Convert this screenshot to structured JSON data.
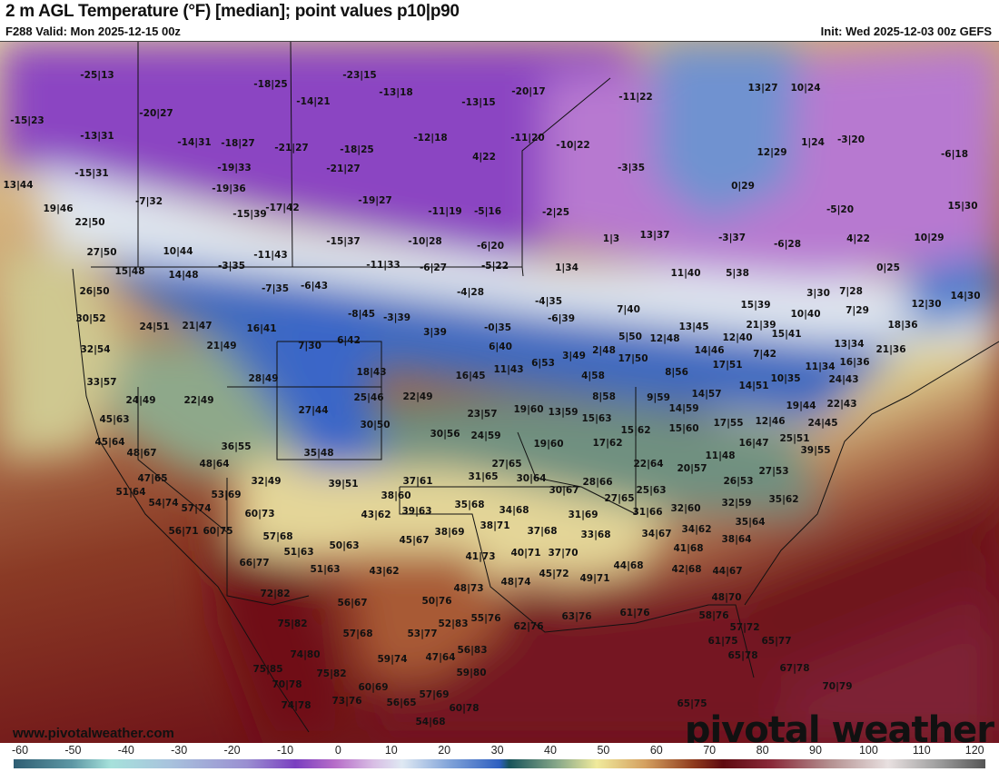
{
  "header": {
    "title": "2 m AGL Temperature (°F) [median]; point values p10|p90",
    "valid": "F288 Valid: Mon 2025-12-15 00z",
    "init": "Init: Wed 2025-12-03 00z GEFS"
  },
  "map": {
    "website": "www.pivotalweather.com",
    "logo": "pivotal weather",
    "points": [
      "-25|13",
      "-18|25",
      "-23|15",
      "-13|18",
      "-20|17",
      "-13|15",
      "-11|22",
      "13|27",
      "10|24",
      "-15|23",
      "-20|27",
      "-14|21",
      "-13|31",
      "-14|31",
      "-18|27",
      "-21|27",
      "-18|25",
      "-12|18",
      "-11|20",
      "-10|22",
      "4|22",
      "12|29",
      "1|24",
      "-3|20",
      "-6|18",
      "-19|33",
      "-21|27",
      "-3|35",
      "0|29",
      "13|44",
      "-15|31",
      "-19|36",
      "-19|27",
      "-7|32",
      "-17|42",
      "-15|39",
      "-11|19",
      "-5|16",
      "-2|25",
      "-5|20",
      "15|30",
      "19|46",
      "22|50",
      "-10|28",
      "-6|20",
      "-15|37",
      "1|3",
      "13|37",
      "-3|37",
      "-6|28",
      "4|22",
      "10|29",
      "27|50",
      "10|44",
      "-11|43",
      "-11|33",
      "-6|27",
      "-5|22",
      "1|34",
      "11|40",
      "5|38",
      "0|25",
      "15|48",
      "14|48",
      "-3|35",
      "-7|35",
      "-6|43",
      "-4|28",
      "-4|35",
      "3|30",
      "7|28",
      "12|30",
      "14|30",
      "26|50",
      "30|52",
      "24|51",
      "21|47",
      "16|41",
      "7|30",
      "-8|45",
      "-3|39",
      "-0|35",
      "-6|39",
      "7|40",
      "15|39",
      "21|39",
      "10|40",
      "7|29",
      "18|36",
      "13|45",
      "12|48",
      "5|50",
      "17|50",
      "3|49",
      "6|53",
      "2|48",
      "6|40",
      "3|39",
      "11|43",
      "16|45",
      "6|42",
      "18|43",
      "32|54",
      "21|49",
      "28|49",
      "15|41",
      "12|40",
      "14|46",
      "17|51",
      "7|42",
      "13|34",
      "21|36",
      "11|34",
      "10|35",
      "16|36",
      "14|51",
      "24|43",
      "8|56",
      "4|58",
      "33|57",
      "24|49",
      "22|49",
      "25|46",
      "22|49",
      "8|58",
      "9|59",
      "14|57",
      "19|60",
      "13|59",
      "27|44",
      "14|59",
      "22|43",
      "19|44",
      "45|63",
      "23|57",
      "15|63",
      "30|50",
      "12|46",
      "17|55",
      "15|60",
      "24|45",
      "45|64",
      "30|56",
      "24|59",
      "15|62",
      "25|51",
      "16|47",
      "17|62",
      "19|60",
      "48|67",
      "36|55",
      "35|48",
      "39|55",
      "11|48",
      "48|64",
      "22|64",
      "20|57",
      "27|53",
      "27|65",
      "47|65",
      "32|49",
      "39|51",
      "37|61",
      "31|65",
      "30|64",
      "28|66",
      "26|53",
      "51|64",
      "53|69",
      "38|60",
      "30|67",
      "25|63",
      "27|65",
      "32|59",
      "35|62",
      "54|74",
      "57|74",
      "60|73",
      "43|62",
      "39|63",
      "35|68",
      "34|68",
      "31|69",
      "31|66",
      "32|60",
      "35|64",
      "56|71",
      "60|75",
      "57|68",
      "38|69",
      "38|71",
      "37|68",
      "33|68",
      "34|67",
      "34|62",
      "38|64",
      "50|63",
      "45|67",
      "51|63",
      "41|73",
      "40|71",
      "37|70",
      "41|68",
      "66|77",
      "51|63",
      "43|62",
      "45|72",
      "44|68",
      "49|71",
      "42|68",
      "44|67",
      "48|73",
      "48|74",
      "72|82",
      "56|67",
      "50|76",
      "48|70",
      "55|76",
      "52|83",
      "62|76",
      "63|76",
      "61|76",
      "58|76",
      "75|82",
      "57|68",
      "53|77",
      "57|72",
      "61|75",
      "65|77",
      "74|80",
      "59|74",
      "47|64",
      "56|83",
      "65|78",
      "75|85",
      "75|82",
      "59|80",
      "67|78",
      "70|78",
      "60|69",
      "70|79",
      "57|69",
      "74|78",
      "73|76",
      "56|65",
      "60|78",
      "65|75",
      "54|68"
    ]
  },
  "colorbar": {
    "unit_ticks": [
      "-60",
      "-50",
      "-40",
      "-30",
      "-20",
      "-10",
      "0",
      "10",
      "20",
      "30",
      "40",
      "50",
      "60",
      "70",
      "80",
      "90",
      "100",
      "110",
      "120"
    ]
  }
}
